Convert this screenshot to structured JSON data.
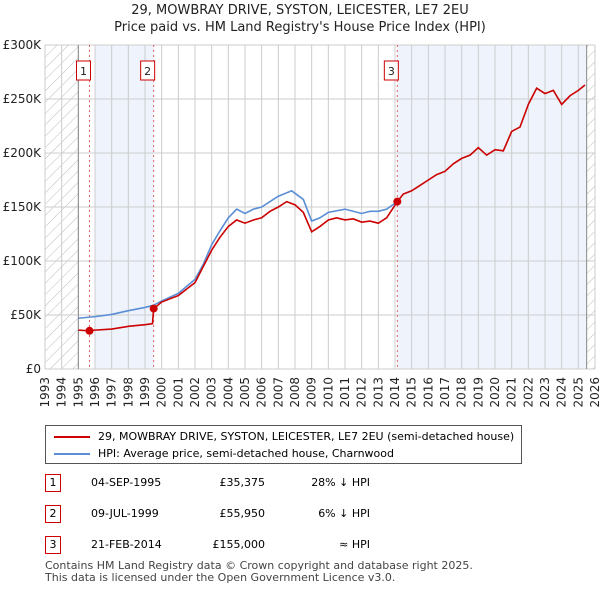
{
  "title": "29, MOWBRAY DRIVE, SYSTON, LEICESTER, LE7 2EU",
  "subtitle": "Price paid vs. HM Land Registry's House Price Index (HPI)",
  "chart_data": {
    "type": "line",
    "xlim": [
      1993,
      2026
    ],
    "ylim": [
      0,
      300000
    ],
    "yticks": [
      {
        "v": 0,
        "label": "£0"
      },
      {
        "v": 50000,
        "label": "£50K"
      },
      {
        "v": 100000,
        "label": "£100K"
      },
      {
        "v": 150000,
        "label": "£150K"
      },
      {
        "v": 200000,
        "label": "£200K"
      },
      {
        "v": 250000,
        "label": "£250K"
      },
      {
        "v": 300000,
        "label": "£300K"
      }
    ],
    "xticks": [
      1993,
      1994,
      1995,
      1996,
      1997,
      1998,
      1999,
      2000,
      2001,
      2002,
      2003,
      2004,
      2005,
      2006,
      2007,
      2008,
      2009,
      2010,
      2011,
      2012,
      2013,
      2014,
      2015,
      2016,
      2017,
      2018,
      2019,
      2020,
      2021,
      2022,
      2023,
      2024,
      2025,
      2026
    ],
    "hatched_ranges": [
      [
        1993,
        1995
      ],
      [
        2025.5,
        2026
      ]
    ],
    "shaded_ranges": [
      [
        1996,
        1999.52
      ],
      [
        2014.14,
        2025.5
      ]
    ],
    "series": [
      {
        "name": "29, MOWBRAY DRIVE, SYSTON, LEICESTER, LE7 2EU (semi-detached house)",
        "color": "#cc0000",
        "x": [
          1995.0,
          1995.67,
          1996,
          1997,
          1998,
          1999,
          1999.45,
          1999.52,
          2000,
          2001,
          2002,
          2002.5,
          2003,
          2003.5,
          2004,
          2004.5,
          2005,
          2005.5,
          2006,
          2006.5,
          2007,
          2007.5,
          2008,
          2008.5,
          2009,
          2009.5,
          2010,
          2010.5,
          2011,
          2011.5,
          2012,
          2012.5,
          2013,
          2013.5,
          2014.14,
          2014.5,
          2015,
          2015.5,
          2016,
          2016.5,
          2017,
          2017.5,
          2018,
          2018.5,
          2019,
          2019.5,
          2020,
          2020.5,
          2021,
          2021.5,
          2022,
          2022.5,
          2023,
          2023.5,
          2024,
          2024.5,
          2025,
          2025.4
        ],
        "y": [
          36000,
          35375,
          36000,
          37000,
          39500,
          41000,
          42000,
          55950,
          62000,
          68000,
          80000,
          95000,
          110000,
          122000,
          132000,
          138000,
          135000,
          138000,
          140000,
          146000,
          150000,
          155000,
          152000,
          145000,
          127000,
          132000,
          138000,
          140000,
          138000,
          139000,
          136000,
          137000,
          135000,
          140000,
          155000,
          162000,
          165000,
          170000,
          175000,
          180000,
          183000,
          190000,
          195000,
          198000,
          205000,
          198000,
          203000,
          202000,
          220000,
          224000,
          245000,
          260000,
          255000,
          258000,
          245000,
          253000,
          258000,
          263000
        ]
      },
      {
        "name": "HPI: Average price, semi-detached house, Charnwood",
        "color": "#5b8ed6",
        "x": [
          1995.0,
          1996,
          1997,
          1998,
          1999,
          1999.5,
          2000,
          2001,
          2002,
          2002.5,
          2003,
          2003.5,
          2004,
          2004.5,
          2005,
          2005.5,
          2006,
          2006.5,
          2007,
          2007.8,
          2008.5,
          2009,
          2009.5,
          2010,
          2011,
          2012,
          2012.5,
          2013,
          2013.5,
          2014.14
        ],
        "y": [
          47000,
          48500,
          50500,
          54000,
          57000,
          59000,
          63000,
          70000,
          83000,
          97000,
          115000,
          128000,
          140000,
          148000,
          144000,
          148000,
          150000,
          155000,
          160000,
          165000,
          157000,
          137000,
          140000,
          145000,
          148000,
          144000,
          146000,
          146000,
          148000,
          155000
        ]
      }
    ],
    "sales": [
      {
        "n": "1",
        "x": 1995.67,
        "y": 35375
      },
      {
        "n": "2",
        "x": 1999.52,
        "y": 55950
      },
      {
        "n": "3",
        "x": 2014.14,
        "y": 155000
      }
    ]
  },
  "legend": {
    "red": "29, MOWBRAY DRIVE, SYSTON, LEICESTER, LE7 2EU (semi-detached house)",
    "blue": "HPI: Average price, semi-detached house, Charnwood"
  },
  "table": [
    {
      "n": "1",
      "date": "04-SEP-1995",
      "price": "£35,375",
      "hpi": "28% ↓ HPI"
    },
    {
      "n": "2",
      "date": "09-JUL-1999",
      "price": "£55,950",
      "hpi": "6% ↓ HPI"
    },
    {
      "n": "3",
      "date": "21-FEB-2014",
      "price": "£155,000",
      "hpi": "≈ HPI"
    }
  ],
  "footer": [
    "Contains HM Land Registry data © Crown copyright and database right 2025.",
    "This data is licensed under the Open Government Licence v3.0."
  ]
}
